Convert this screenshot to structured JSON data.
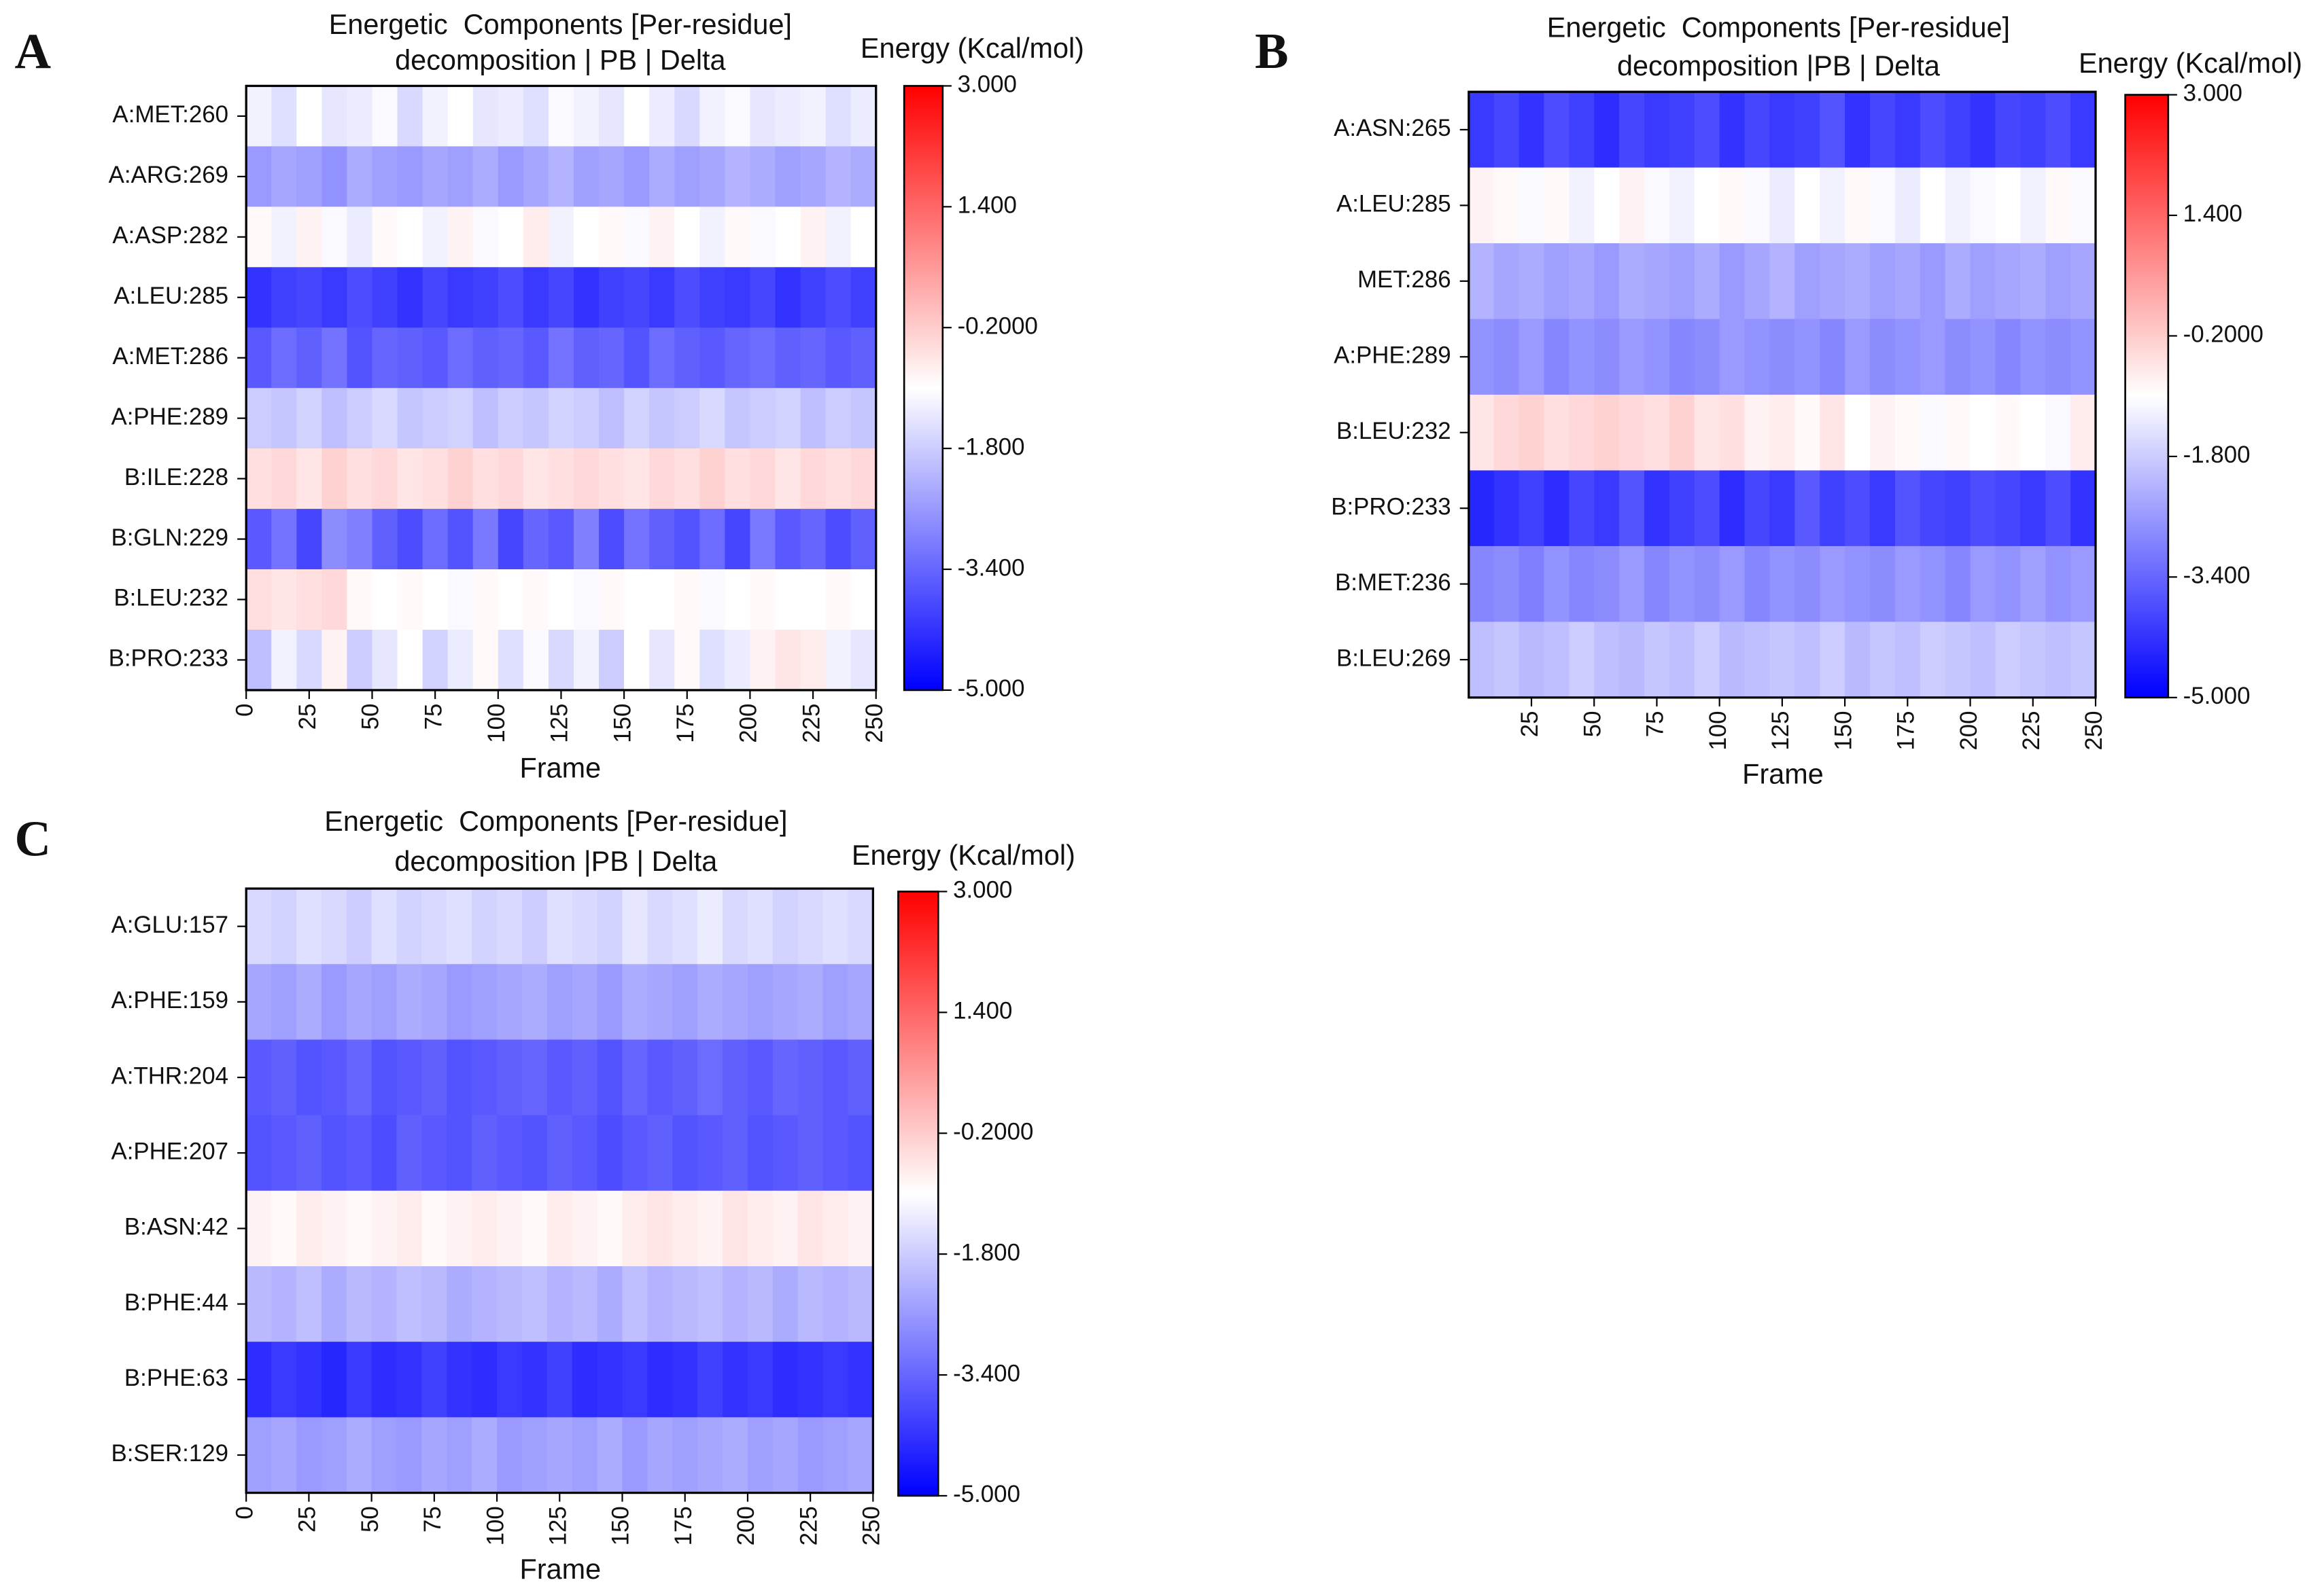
{
  "chart_data": [
    {
      "type": "heatmap",
      "panel_label": "A",
      "title": [
        "Energetic  Components [Per-residue]",
        "decomposition | PB | Delta"
      ],
      "xlabel": "Frame",
      "colorbar_label": "Energy (Kcal/mol)",
      "rows": [
        "A:MET:260",
        "A:ARG:269",
        "A:ASP:282",
        "A:LEU:285",
        "A:MET:286",
        "A:PHE:289",
        "B:ILE:228",
        "B:GLN:229",
        "B:LEU:232",
        "B:PRO:233"
      ],
      "bins": [
        0,
        10,
        20,
        30,
        40,
        50,
        60,
        70,
        80,
        90,
        100,
        110,
        120,
        130,
        140,
        150,
        160,
        170,
        180,
        190,
        200,
        210,
        220,
        230,
        240,
        250
      ],
      "values": [
        [
          -1.2,
          -1.5,
          -1.0,
          -1.4,
          -1.3,
          -1.1,
          -1.6,
          -1.2,
          -1.0,
          -1.4,
          -1.3,
          -1.5,
          -1.1,
          -1.2,
          -1.4,
          -1.0,
          -1.3,
          -1.6,
          -1.2,
          -1.1,
          -1.4,
          -1.3,
          -1.2,
          -1.5,
          -1.3
        ],
        [
          -2.6,
          -2.4,
          -2.5,
          -2.7,
          -2.3,
          -2.5,
          -2.6,
          -2.4,
          -2.5,
          -2.3,
          -2.6,
          -2.4,
          -2.2,
          -2.5,
          -2.4,
          -2.6,
          -2.3,
          -2.5,
          -2.4,
          -2.2,
          -2.3,
          -2.5,
          -2.4,
          -2.2,
          -2.3
        ],
        [
          -0.9,
          -1.2,
          -0.8,
          -1.1,
          -1.3,
          -0.9,
          -1.0,
          -1.2,
          -0.8,
          -1.1,
          -1.0,
          -0.7,
          -1.2,
          -1.0,
          -0.9,
          -1.1,
          -0.8,
          -1.0,
          -1.2,
          -0.9,
          -1.1,
          -1.0,
          -0.8,
          -1.2,
          -1.0
        ],
        [
          -4.2,
          -4.0,
          -3.9,
          -4.1,
          -3.8,
          -4.0,
          -4.2,
          -3.9,
          -4.1,
          -4.0,
          -3.8,
          -4.1,
          -3.9,
          -4.2,
          -4.0,
          -3.9,
          -4.1,
          -3.8,
          -4.0,
          -4.1,
          -3.9,
          -4.2,
          -4.0,
          -3.8,
          -4.0
        ],
        [
          -3.6,
          -3.3,
          -3.5,
          -3.2,
          -3.7,
          -3.4,
          -3.5,
          -3.6,
          -3.3,
          -3.5,
          -3.4,
          -3.6,
          -3.2,
          -3.5,
          -3.4,
          -3.7,
          -3.3,
          -3.5,
          -3.6,
          -3.4,
          -3.3,
          -3.5,
          -3.4,
          -3.6,
          -3.5
        ],
        [
          -1.8,
          -1.9,
          -1.7,
          -2.0,
          -1.8,
          -1.6,
          -1.9,
          -1.8,
          -1.7,
          -2.0,
          -1.8,
          -1.9,
          -1.7,
          -1.8,
          -2.0,
          -1.7,
          -1.9,
          -1.8,
          -1.6,
          -1.9,
          -1.8,
          -1.7,
          -2.0,
          -1.8,
          -1.9
        ],
        [
          -0.5,
          -0.4,
          -0.6,
          -0.3,
          -0.5,
          -0.4,
          -0.6,
          -0.5,
          -0.3,
          -0.5,
          -0.4,
          -0.6,
          -0.5,
          -0.4,
          -0.5,
          -0.6,
          -0.4,
          -0.5,
          -0.3,
          -0.5,
          -0.4,
          -0.6,
          -0.4,
          -0.5,
          -0.4
        ],
        [
          -3.6,
          -3.2,
          -3.9,
          -2.8,
          -3.0,
          -3.5,
          -3.8,
          -3.3,
          -3.7,
          -3.1,
          -3.9,
          -3.4,
          -3.6,
          -3.0,
          -3.8,
          -3.2,
          -3.5,
          -3.7,
          -3.3,
          -3.9,
          -3.1,
          -3.6,
          -3.4,
          -3.8,
          -3.5
        ],
        [
          -0.5,
          -0.6,
          -0.5,
          -0.4,
          -0.9,
          -1.0,
          -0.9,
          -1.0,
          -1.1,
          -0.9,
          -1.0,
          -0.9,
          -1.0,
          -1.1,
          -0.9,
          -1.0,
          -1.0,
          -0.9,
          -1.1,
          -1.0,
          -0.9,
          -1.0,
          -1.0,
          -0.9,
          -1.0
        ],
        [
          -2.0,
          -1.2,
          -1.6,
          -0.8,
          -1.8,
          -1.4,
          -1.0,
          -1.7,
          -1.3,
          -0.9,
          -1.5,
          -1.1,
          -1.6,
          -1.2,
          -1.8,
          -1.0,
          -1.4,
          -0.9,
          -1.5,
          -1.3,
          -0.8,
          -0.6,
          -0.7,
          -1.2,
          -1.4
        ]
      ],
      "xlim": [
        0,
        250
      ],
      "xticks": [
        0,
        25,
        50,
        75,
        100,
        125,
        150,
        175,
        200,
        225,
        250
      ],
      "clim": [
        -5,
        3
      ],
      "cticks": [
        {
          "value": -5,
          "label": "-5.000"
        },
        {
          "value": -3.4,
          "label": "-3.400"
        },
        {
          "value": -1.8,
          "label": "-1.800"
        },
        {
          "value": -0.2,
          "label": "-0.2000"
        },
        {
          "value": 1.4,
          "label": "1.400"
        },
        {
          "value": 3,
          "label": "3.000"
        }
      ],
      "colors": [
        "#0000ff",
        "#ffffff",
        "#ff0000"
      ]
    },
    {
      "type": "heatmap",
      "panel_label": "B",
      "title": [
        "Energetic  Components [Per-residue]",
        "decomposition |PB | Delta"
      ],
      "xlabel": "Frame",
      "colorbar_label": "Energy (Kcal/mol)",
      "rows": [
        "A:ASN:265",
        "A:LEU:285",
        "MET:286",
        "A:PHE:289",
        "B:LEU:232",
        "B:PRO:233",
        "B:MET:236",
        "B:LEU:269"
      ],
      "bins": [
        0,
        10,
        20,
        30,
        40,
        50,
        60,
        70,
        80,
        90,
        100,
        110,
        120,
        130,
        140,
        150,
        160,
        170,
        180,
        190,
        200,
        210,
        220,
        230,
        240,
        250
      ],
      "values": [
        [
          -4.1,
          -3.9,
          -4.2,
          -3.8,
          -4.0,
          -4.3,
          -3.9,
          -4.1,
          -4.0,
          -3.8,
          -4.2,
          -3.9,
          -4.1,
          -4.0,
          -3.7,
          -4.2,
          -3.9,
          -4.1,
          -3.8,
          -4.0,
          -4.2,
          -3.9,
          -4.0,
          -3.8,
          -4.1
        ],
        [
          -0.8,
          -0.9,
          -1.1,
          -0.9,
          -1.2,
          -1.0,
          -0.8,
          -1.1,
          -1.2,
          -1.0,
          -0.9,
          -1.1,
          -1.3,
          -1.0,
          -1.2,
          -0.9,
          -1.1,
          -1.3,
          -1.0,
          -1.2,
          -1.1,
          -1.0,
          -1.2,
          -0.9,
          -1.1
        ],
        [
          -2.2,
          -2.4,
          -2.3,
          -2.5,
          -2.4,
          -2.6,
          -2.3,
          -2.4,
          -2.5,
          -2.3,
          -2.6,
          -2.4,
          -2.2,
          -2.5,
          -2.4,
          -2.3,
          -2.5,
          -2.4,
          -2.6,
          -2.3,
          -2.5,
          -2.4,
          -2.3,
          -2.5,
          -2.4
        ],
        [
          -2.7,
          -2.8,
          -2.6,
          -2.9,
          -2.7,
          -2.8,
          -2.6,
          -2.7,
          -2.9,
          -2.8,
          -2.6,
          -2.7,
          -2.8,
          -2.7,
          -2.9,
          -2.6,
          -2.8,
          -2.7,
          -2.6,
          -2.8,
          -2.7,
          -2.9,
          -2.7,
          -2.8,
          -2.7
        ],
        [
          -0.6,
          -0.4,
          -0.3,
          -0.5,
          -0.4,
          -0.3,
          -0.4,
          -0.5,
          -0.3,
          -0.6,
          -0.5,
          -0.8,
          -0.7,
          -0.9,
          -0.6,
          -1.0,
          -0.8,
          -0.9,
          -1.1,
          -0.9,
          -1.0,
          -0.9,
          -1.0,
          -1.1,
          -0.7
        ],
        [
          -4.4,
          -4.2,
          -4.0,
          -4.3,
          -3.9,
          -4.1,
          -3.7,
          -4.2,
          -4.0,
          -3.8,
          -4.3,
          -3.9,
          -4.1,
          -3.6,
          -4.0,
          -3.8,
          -4.1,
          -3.7,
          -3.9,
          -4.0,
          -3.8,
          -3.9,
          -4.1,
          -3.8,
          -4.2
        ],
        [
          -2.9,
          -2.8,
          -3.0,
          -2.7,
          -2.9,
          -2.8,
          -2.6,
          -2.9,
          -2.7,
          -2.8,
          -2.6,
          -2.9,
          -2.7,
          -2.8,
          -2.6,
          -2.7,
          -2.8,
          -2.6,
          -2.7,
          -2.9,
          -2.6,
          -2.7,
          -2.5,
          -2.7,
          -2.6
        ],
        [
          -2.0,
          -1.9,
          -2.1,
          -2.0,
          -1.8,
          -2.0,
          -2.1,
          -1.9,
          -2.0,
          -1.8,
          -2.1,
          -2.0,
          -1.9,
          -2.0,
          -1.8,
          -2.1,
          -1.9,
          -2.0,
          -1.8,
          -1.9,
          -2.0,
          -1.8,
          -1.9,
          -2.0,
          -1.9
        ]
      ],
      "xlim": [
        0,
        250
      ],
      "xticks": [
        25,
        50,
        75,
        100,
        125,
        150,
        175,
        200,
        225,
        250
      ],
      "clim": [
        -5,
        3
      ],
      "cticks": [
        {
          "value": -5,
          "label": "-5.000"
        },
        {
          "value": -3.4,
          "label": "-3.400"
        },
        {
          "value": -1.8,
          "label": "-1.800"
        },
        {
          "value": -0.2,
          "label": "-0.2000"
        },
        {
          "value": 1.4,
          "label": "1.400"
        },
        {
          "value": 3,
          "label": "3.000"
        }
      ],
      "colors": [
        "#0000ff",
        "#ffffff",
        "#ff0000"
      ]
    },
    {
      "type": "heatmap",
      "panel_label": "C",
      "title": [
        "Energetic  Components [Per-residue]",
        "decomposition |PB | Delta"
      ],
      "xlabel": "Frame",
      "colorbar_label": "Energy (Kcal/mol)",
      "rows": [
        "A:GLU:157",
        "A:PHE:159",
        "A:THR:204",
        "A:PHE:207",
        "B:ASN:42",
        "B:PHE:44",
        "B:PHE:63",
        "B:SER:129"
      ],
      "bins": [
        0,
        10,
        20,
        30,
        40,
        50,
        60,
        70,
        80,
        90,
        100,
        110,
        120,
        130,
        140,
        150,
        160,
        170,
        180,
        190,
        200,
        210,
        220,
        230,
        240,
        250
      ],
      "values": [
        [
          -1.6,
          -1.7,
          -1.5,
          -1.6,
          -1.8,
          -1.5,
          -1.7,
          -1.6,
          -1.5,
          -1.7,
          -1.6,
          -1.8,
          -1.5,
          -1.6,
          -1.7,
          -1.4,
          -1.6,
          -1.5,
          -1.3,
          -1.6,
          -1.5,
          -1.7,
          -1.6,
          -1.5,
          -1.6
        ],
        [
          -2.4,
          -2.5,
          -2.3,
          -2.6,
          -2.4,
          -2.5,
          -2.3,
          -2.4,
          -2.6,
          -2.5,
          -2.4,
          -2.3,
          -2.5,
          -2.4,
          -2.6,
          -2.3,
          -2.4,
          -2.5,
          -2.3,
          -2.4,
          -2.5,
          -2.4,
          -2.3,
          -2.5,
          -2.4
        ],
        [
          -3.6,
          -3.5,
          -3.7,
          -3.6,
          -3.4,
          -3.7,
          -3.6,
          -3.5,
          -3.7,
          -3.6,
          -3.5,
          -3.4,
          -3.6,
          -3.5,
          -3.7,
          -3.4,
          -3.6,
          -3.5,
          -3.3,
          -3.5,
          -3.6,
          -3.4,
          -3.5,
          -3.6,
          -3.5
        ],
        [
          -3.7,
          -3.6,
          -3.5,
          -3.7,
          -3.6,
          -3.8,
          -3.5,
          -3.6,
          -3.7,
          -3.5,
          -3.6,
          -3.7,
          -3.5,
          -3.6,
          -3.8,
          -3.6,
          -3.5,
          -3.7,
          -3.6,
          -3.5,
          -3.7,
          -3.6,
          -3.5,
          -3.6,
          -3.7
        ],
        [
          -0.8,
          -0.9,
          -0.7,
          -0.8,
          -0.9,
          -0.8,
          -0.7,
          -0.9,
          -0.8,
          -0.7,
          -0.8,
          -0.9,
          -0.7,
          -0.8,
          -0.9,
          -0.7,
          -0.6,
          -0.7,
          -0.8,
          -0.6,
          -0.7,
          -0.8,
          -0.6,
          -0.7,
          -0.8
        ],
        [
          -2.1,
          -2.2,
          -2.0,
          -2.3,
          -2.1,
          -2.2,
          -2.0,
          -2.1,
          -2.3,
          -2.2,
          -2.1,
          -2.0,
          -2.2,
          -2.1,
          -2.3,
          -2.0,
          -2.2,
          -2.1,
          -2.0,
          -2.2,
          -2.1,
          -2.3,
          -2.1,
          -2.2,
          -2.1
        ],
        [
          -4.3,
          -4.1,
          -4.2,
          -4.4,
          -4.1,
          -4.3,
          -4.2,
          -4.0,
          -4.2,
          -4.3,
          -4.1,
          -4.2,
          -4.0,
          -4.3,
          -4.2,
          -4.1,
          -4.3,
          -4.2,
          -4.0,
          -4.2,
          -4.1,
          -4.3,
          -4.2,
          -4.1,
          -4.2
        ],
        [
          -2.5,
          -2.4,
          -2.6,
          -2.5,
          -2.3,
          -2.5,
          -2.6,
          -2.4,
          -2.5,
          -2.3,
          -2.6,
          -2.5,
          -2.4,
          -2.5,
          -2.3,
          -2.6,
          -2.4,
          -2.5,
          -2.4,
          -2.3,
          -2.5,
          -2.4,
          -2.6,
          -2.5,
          -2.4
        ]
      ],
      "xlim": [
        0,
        250
      ],
      "xticks": [
        0,
        25,
        50,
        75,
        100,
        125,
        150,
        175,
        200,
        225,
        250
      ],
      "clim": [
        -5,
        3
      ],
      "cticks": [
        {
          "value": -5,
          "label": "-5.000"
        },
        {
          "value": -3.4,
          "label": "-3.400"
        },
        {
          "value": -1.8,
          "label": "-1.800"
        },
        {
          "value": -0.2,
          "label": "-0.2000"
        },
        {
          "value": 1.4,
          "label": "1.400"
        },
        {
          "value": 3,
          "label": "3.000"
        }
      ],
      "colors": [
        "#0000ff",
        "#ffffff",
        "#ff0000"
      ]
    }
  ]
}
